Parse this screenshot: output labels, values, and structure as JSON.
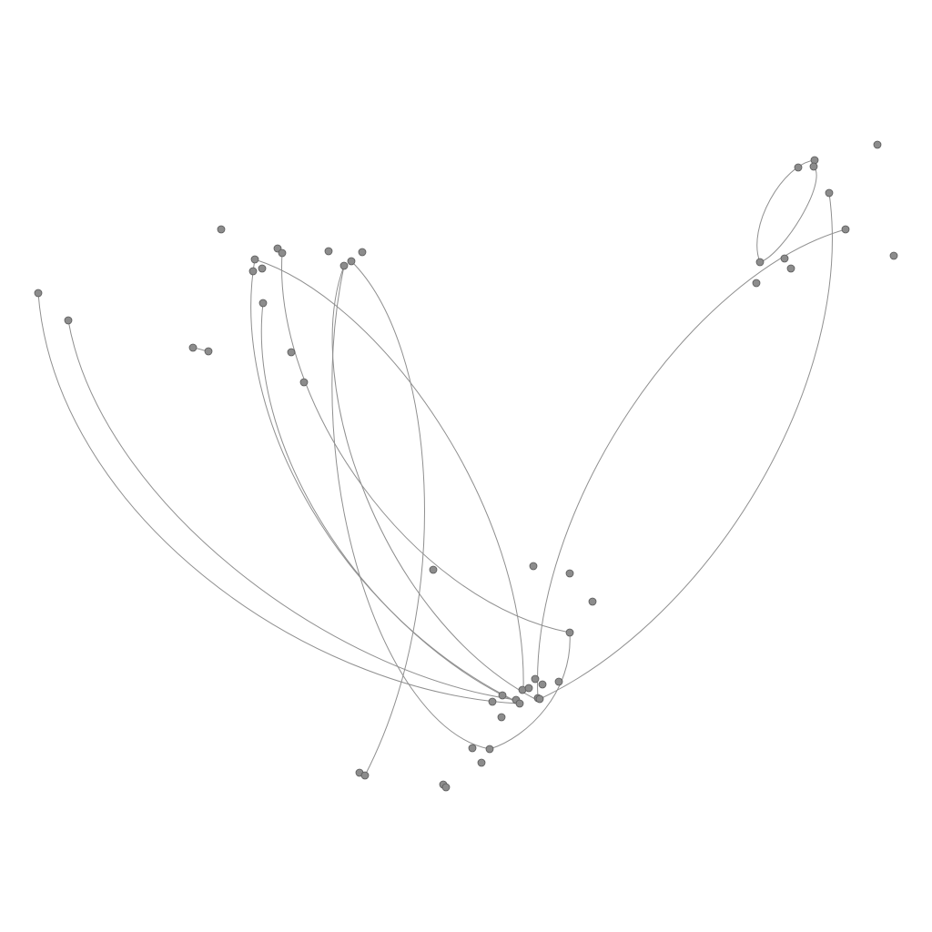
{
  "diagram": {
    "type": "network-graph",
    "colors": {
      "background": "#ffffff",
      "node_fill": "#8c8c8c",
      "node_stroke": "#5a5a5a",
      "edge": "#8f8f8f"
    }
  }
}
